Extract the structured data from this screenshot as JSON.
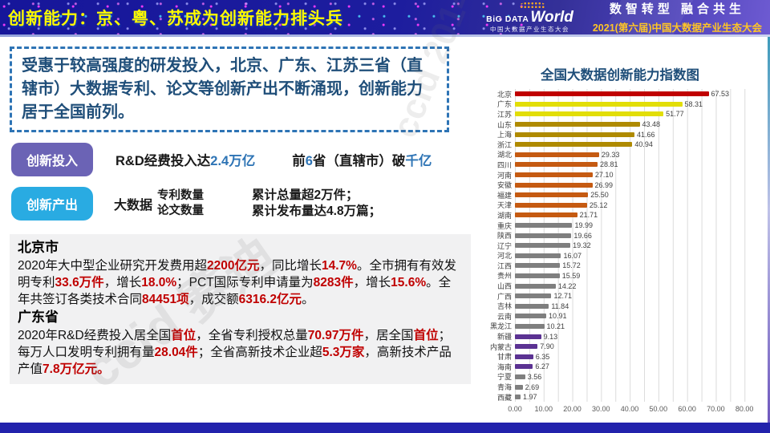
{
  "header": {
    "title": "创新能力：京、粤、苏成为创新能力排头兵",
    "logo": {
      "big_data": "BiG DATA",
      "world": "World",
      "subtitle": "中国大数据产业生态大会"
    },
    "slogan": "数智转型  融合共生",
    "event": "2021(第六届)中国大数据产业生态大会"
  },
  "summary": {
    "text": "受惠于较高强度的研发投入，北京、广东、江苏三省（直辖市）大数据专利、论文等创新产出不断涌现，创新能力居于全国前列。"
  },
  "investment": {
    "badge": "创新投入",
    "text1": "R&D经费投入达",
    "value1": "2.4万亿",
    "text2": "前",
    "value2": "6",
    "text3": "省（直辖市）破",
    "value3": "千亿"
  },
  "output": {
    "badge": "创新产出",
    "prefix": "大数据",
    "item1": "专利数量",
    "item2": "论文数量",
    "result1": "累计总量超2万件；",
    "result2": "累计发布量达4.8万篇；"
  },
  "beijing": {
    "title": "北京市",
    "segments": [
      {
        "t": "2020年大中型企业研究开发费用超",
        "hl": false
      },
      {
        "t": "2200亿元",
        "hl": true
      },
      {
        "t": "，同比增长",
        "hl": false
      },
      {
        "t": "14.7%",
        "hl": true
      },
      {
        "t": "。全市拥有有效发明专利",
        "hl": false
      },
      {
        "t": "33.6万件",
        "hl": true
      },
      {
        "t": "，增长",
        "hl": false
      },
      {
        "t": "18.0%",
        "hl": true
      },
      {
        "t": "；PCT国际专利申请量为",
        "hl": false
      },
      {
        "t": "8283件",
        "hl": true
      },
      {
        "t": "，增长",
        "hl": false
      },
      {
        "t": "15.6%",
        "hl": true
      },
      {
        "t": "。全年共签订各类技术合同",
        "hl": false
      },
      {
        "t": "84451项",
        "hl": true
      },
      {
        "t": "，成交额",
        "hl": false
      },
      {
        "t": "6316.2亿元",
        "hl": true
      },
      {
        "t": "。",
        "hl": false
      }
    ]
  },
  "guangdong": {
    "title": "广东省",
    "segments": [
      {
        "t": "2020年R&D经费投入居全国",
        "hl": false
      },
      {
        "t": "首位",
        "hl": true
      },
      {
        "t": "，全省专利授权总量",
        "hl": false
      },
      {
        "t": "70.97万件",
        "hl": true
      },
      {
        "t": "，居全国",
        "hl": false
      },
      {
        "t": "首位",
        "hl": true
      },
      {
        "t": "；每万人口发明专利拥有量",
        "hl": false
      },
      {
        "t": "28.04件",
        "hl": true
      },
      {
        "t": "；全省高新技术企业超",
        "hl": false
      },
      {
        "t": "5.3万家",
        "hl": true
      },
      {
        "t": "，高新技术产品产值",
        "hl": false
      },
      {
        "t": "7.8万亿元。",
        "hl": true
      }
    ]
  },
  "chart_data": {
    "type": "bar",
    "orientation": "horizontal",
    "title": "全国大数据创新能力指数图",
    "xlabel": "",
    "ylabel": "",
    "xlim": [
      0,
      85
    ],
    "gridline_step": 5,
    "x_ticks": [
      "0.00",
      "10.00",
      "20.00",
      "30.00",
      "40.00",
      "50.00",
      "60.00",
      "70.00",
      "80.00"
    ],
    "palette": {
      "red": "#C00000",
      "yellow": "#E2DE07",
      "gold": "#AF8A00",
      "orange": "#C55A11",
      "gray": "#7F7F7F",
      "purple": "#5B3292"
    },
    "rows": [
      {
        "name": "北京",
        "value": 67.53,
        "color": "red"
      },
      {
        "name": "广东",
        "value": 58.31,
        "color": "yellow"
      },
      {
        "name": "江苏",
        "value": 51.77,
        "color": "yellow"
      },
      {
        "name": "山东",
        "value": 43.48,
        "color": "gold"
      },
      {
        "name": "上海",
        "value": 41.66,
        "color": "gold"
      },
      {
        "name": "浙江",
        "value": 40.94,
        "color": "gold"
      },
      {
        "name": "湖北",
        "value": 29.33,
        "color": "orange"
      },
      {
        "name": "四川",
        "value": 28.81,
        "color": "orange"
      },
      {
        "name": "河南",
        "value": 27.1,
        "color": "orange"
      },
      {
        "name": "安徽",
        "value": 26.99,
        "color": "orange"
      },
      {
        "name": "福建",
        "value": 25.5,
        "color": "orange"
      },
      {
        "name": "天津",
        "value": 25.12,
        "color": "orange"
      },
      {
        "name": "湖南",
        "value": 21.71,
        "color": "orange"
      },
      {
        "name": "重庆",
        "value": 19.99,
        "color": "gray"
      },
      {
        "name": "陕西",
        "value": 19.66,
        "color": "gray"
      },
      {
        "name": "辽宁",
        "value": 19.32,
        "color": "gray"
      },
      {
        "name": "河北",
        "value": 16.07,
        "color": "gray"
      },
      {
        "name": "江西",
        "value": 15.72,
        "color": "gray"
      },
      {
        "name": "贵州",
        "value": 15.59,
        "color": "gray"
      },
      {
        "name": "山西",
        "value": 14.22,
        "color": "gray"
      },
      {
        "name": "广西",
        "value": 12.71,
        "color": "gray"
      },
      {
        "name": "吉林",
        "value": 11.84,
        "color": "gray"
      },
      {
        "name": "云南",
        "value": 10.91,
        "color": "gray"
      },
      {
        "name": "黑龙江",
        "value": 10.21,
        "color": "gray"
      },
      {
        "name": "新疆",
        "value": 9.13,
        "color": "purple"
      },
      {
        "name": "内蒙古",
        "value": 7.9,
        "color": "purple"
      },
      {
        "name": "甘肃",
        "value": 6.35,
        "color": "purple"
      },
      {
        "name": "海南",
        "value": 6.27,
        "color": "purple"
      },
      {
        "name": "宁夏",
        "value": 3.56,
        "color": "gray"
      },
      {
        "name": "青海",
        "value": 2.69,
        "color": "gray"
      },
      {
        "name": "西藏",
        "value": 1.97,
        "color": "gray"
      }
    ]
  },
  "watermark": {
    "text1": "ccid 赛迪",
    "text2": "ccid 2014"
  },
  "colors": {
    "header_bg": "#1B1B96",
    "title_yellow": "#FDF900",
    "accent_blue": "#2E74B5",
    "accent_red": "#C00000",
    "badge_purple": "#6B63B5",
    "badge_cyan": "#29ABE2",
    "event_gold": "#FFC526",
    "bottom_bar": "#2222AC"
  }
}
